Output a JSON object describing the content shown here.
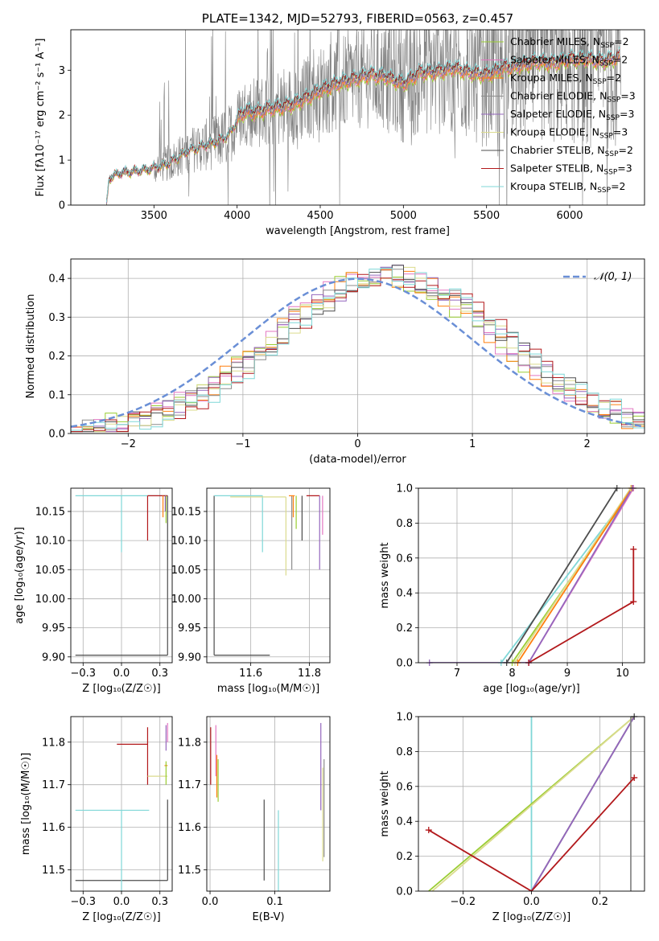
{
  "colors": {
    "Chabrier MILES": "#9acd32",
    "Salpeter MILES": "#e377c2",
    "Kroupa MILES": "#ff7f0e",
    "Chabrier ELODIE": "#8c8c8c",
    "Salpeter ELODIE": "#9467bd",
    "Kroupa ELODIE": "#dbdb8d",
    "Chabrier STELIB": "#4d4d4d",
    "Salpeter STELIB": "#b2181b",
    "Kroupa STELIB": "#7fd7d7",
    "observed": "#808080",
    "normal": "#6a8fd6",
    "grid": "#b0b0b0"
  },
  "chart_data": [
    {
      "id": "spectrum",
      "type": "line",
      "title": "PLATE=1342, MJD=52793, FIBERID=0563, z=0.457",
      "xlabel": "wavelength [Angstrom, rest frame]",
      "ylabel": "Flux [fλ10⁻¹⁷ erg cm⁻² s⁻¹ A⁻¹]",
      "xlim": [
        3000,
        6450
      ],
      "ylim": [
        0,
        3.9
      ],
      "xticks": [
        3500,
        4000,
        4500,
        5000,
        5500,
        6000
      ],
      "yticks": [
        0,
        1,
        2,
        3
      ],
      "grid": false,
      "legend_position": "upper right",
      "legend": [
        {
          "series": "Chabrier MILES",
          "label": "Chabrier MILES, N",
          "sub": "SSP",
          "tail": "=2"
        },
        {
          "series": "Salpeter MILES",
          "label": "Salpeter MILES, N",
          "sub": "SSP",
          "tail": "=2"
        },
        {
          "series": "Kroupa MILES",
          "label": "Kroupa MILES, N",
          "sub": "SSP",
          "tail": "=2"
        },
        {
          "series": "Chabrier ELODIE",
          "label": "Chabrier ELODIE, N",
          "sub": "SSP",
          "tail": "=3"
        },
        {
          "series": "Salpeter ELODIE",
          "label": "Salpeter ELODIE, N",
          "sub": "SSP",
          "tail": "=3"
        },
        {
          "series": "Kroupa ELODIE",
          "label": "Kroupa ELODIE, N",
          "sub": "SSP",
          "tail": "=3"
        },
        {
          "series": "Chabrier STELIB",
          "label": "Chabrier STELIB, N",
          "sub": "SSP",
          "tail": "=2"
        },
        {
          "series": "Salpeter STELIB",
          "label": "Salpeter STELIB, N",
          "sub": "SSP",
          "tail": "=3"
        },
        {
          "series": "Kroupa STELIB",
          "label": "Kroupa STELIB, N",
          "sub": "SSP",
          "tail": "=2"
        }
      ],
      "model_continuum": {
        "x": [
          3215,
          3230,
          3300,
          3400,
          3500,
          3600,
          3700,
          3800,
          3900,
          3950,
          4000,
          4050,
          4100,
          4200,
          4300,
          4400,
          4500,
          4600,
          4700,
          4800,
          4900,
          5000,
          5100,
          5200,
          5300,
          5400,
          5500,
          5600,
          5700,
          5800,
          5900,
          6000,
          6100,
          6200,
          6300
        ],
        "y": [
          0.0,
          0.6,
          0.72,
          0.76,
          0.82,
          0.95,
          1.2,
          1.32,
          1.45,
          1.55,
          1.9,
          2.1,
          2.05,
          2.15,
          2.2,
          2.35,
          2.55,
          2.7,
          2.8,
          2.9,
          2.85,
          2.7,
          2.95,
          2.95,
          3.05,
          2.95,
          2.9,
          3.05,
          3.1,
          3.2,
          3.15,
          3.25,
          3.25,
          3.2,
          3.3
        ]
      }
    },
    {
      "id": "residuals",
      "type": "line",
      "xlabel": "(data-model)/error",
      "ylabel": "Normed distribution",
      "xlim": [
        -2.5,
        2.5
      ],
      "ylim": [
        0,
        0.45
      ],
      "xticks": [
        -2,
        -1,
        0,
        1,
        2
      ],
      "yticks": [
        0.0,
        0.1,
        0.2,
        0.3,
        0.4
      ],
      "grid": true,
      "legend_position": "upper right",
      "legend_label": "𝒩(0, 1)",
      "reference": "standard normal",
      "hist_bin_width": 0.1,
      "hist_mean": 0.28,
      "hist_sd": 0.98
    },
    {
      "id": "age-vs-Z",
      "type": "scatter",
      "xlabel": "Z [log₁₀(Z/Z☉)]",
      "ylabel": "age  [log₁₀(age/yr)]",
      "xlim": [
        -0.33,
        0.33
      ],
      "ylim": [
        9.89,
        10.19
      ],
      "xticks": [
        -0.25,
        0.0,
        0.25
      ],
      "yticks": [
        9.9,
        9.95,
        10.0,
        10.05,
        10.1,
        10.15
      ],
      "grid": true,
      "segments": [
        {
          "series": "Chabrier STELIB",
          "x": [
            -0.3,
            0.3
          ],
          "y": [
            9.903,
            9.903
          ]
        },
        {
          "series": "Chabrier STELIB",
          "x": [
            0.3,
            0.3
          ],
          "y": [
            9.903,
            10.177
          ]
        },
        {
          "series": "Kroupa STELIB",
          "x": [
            -0.3,
            0.3
          ],
          "y": [
            10.177,
            10.177
          ]
        },
        {
          "series": "Kroupa STELIB",
          "x": [
            0.0,
            0.0
          ],
          "y": [
            10.08,
            10.177
          ]
        },
        {
          "series": "Salpeter STELIB",
          "x": [
            0.17,
            0.17
          ],
          "y": [
            10.1,
            10.177
          ]
        },
        {
          "series": "Salpeter STELIB",
          "x": [
            0.17,
            0.3
          ],
          "y": [
            10.177,
            10.177
          ]
        },
        {
          "series": "Kroupa MILES",
          "x": [
            0.27,
            0.27
          ],
          "y": [
            10.14,
            10.177
          ]
        },
        {
          "series": "Chabrier MILES",
          "x": [
            0.29,
            0.29
          ],
          "y": [
            10.13,
            10.177
          ]
        },
        {
          "series": "Salpeter ELODIE",
          "x": [
            0.285,
            0.285
          ],
          "y": [
            10.15,
            10.177
          ]
        }
      ]
    },
    {
      "id": "age-vs-mass",
      "type": "scatter",
      "xlabel": "mass [log₁₀(M/M☉)]",
      "ylabel": "",
      "xlim": [
        11.45,
        11.87
      ],
      "ylim": [
        9.89,
        10.19
      ],
      "xticks": [
        11.6,
        11.8
      ],
      "yticks": [
        9.9,
        9.95,
        10.0,
        10.05,
        10.1,
        10.15
      ],
      "grid": true,
      "segments": [
        {
          "series": "Chabrier STELIB",
          "x": [
            11.475,
            11.475
          ],
          "y": [
            9.903,
            10.177
          ]
        },
        {
          "series": "Chabrier STELIB",
          "x": [
            11.475,
            11.665
          ],
          "y": [
            9.903,
            9.903
          ]
        },
        {
          "series": "Kroupa STELIB",
          "x": [
            11.475,
            11.64
          ],
          "y": [
            10.177,
            10.177
          ]
        },
        {
          "series": "Kroupa STELIB",
          "x": [
            11.64,
            11.64
          ],
          "y": [
            10.08,
            10.177
          ]
        },
        {
          "series": "Kroupa ELODIE",
          "x": [
            11.53,
            11.72
          ],
          "y": [
            10.175,
            10.175
          ]
        },
        {
          "series": "Kroupa ELODIE",
          "x": [
            11.72,
            11.72
          ],
          "y": [
            10.04,
            10.175
          ]
        },
        {
          "series": "Chabrier ELODIE",
          "x": [
            11.74,
            11.74
          ],
          "y": [
            10.05,
            10.177
          ]
        },
        {
          "series": "Chabrier MILES",
          "x": [
            11.755,
            11.755
          ],
          "y": [
            10.12,
            10.177
          ]
        },
        {
          "series": "Kroupa MILES",
          "x": [
            11.73,
            11.75
          ],
          "y": [
            10.177,
            10.177
          ]
        },
        {
          "series": "Kroupa MILES",
          "x": [
            11.745,
            11.745
          ],
          "y": [
            10.14,
            10.177
          ]
        },
        {
          "series": "Salpeter STELIB",
          "x": [
            11.79,
            11.835
          ],
          "y": [
            10.177,
            10.177
          ]
        },
        {
          "series": "Salpeter ELODIE",
          "x": [
            11.835,
            11.835
          ],
          "y": [
            10.05,
            10.177
          ]
        },
        {
          "series": "Salpeter MILES",
          "x": [
            11.845,
            11.845
          ],
          "y": [
            10.11,
            10.177
          ]
        },
        {
          "series": "Chabrier STELIB",
          "x": [
            11.775,
            11.775
          ],
          "y": [
            10.1,
            10.177
          ]
        }
      ]
    },
    {
      "id": "mass-weight-vs-age",
      "type": "line",
      "xlabel": "age  [log₁₀(age/yr)]",
      "ylabel": "mass weight",
      "xlim": [
        6.3,
        10.4
      ],
      "ylim": [
        0,
        1
      ],
      "xticks": [
        7,
        8,
        9,
        10
      ],
      "yticks": [
        0.0,
        0.2,
        0.4,
        0.6,
        0.8,
        1.0
      ],
      "grid": true,
      "lines": [
        {
          "series": "Kroupa STELIB",
          "x": [
            7.8,
            10.2
          ],
          "y": [
            0.0,
            1.0
          ]
        },
        {
          "series": "Chabrier STELIB",
          "x": [
            7.9,
            9.9
          ],
          "y": [
            0.0,
            1.0
          ]
        },
        {
          "series": "Chabrier MILES",
          "x": [
            8.0,
            10.2
          ],
          "y": [
            0.0,
            1.0
          ]
        },
        {
          "series": "Kroupa ELODIE",
          "x": [
            8.05,
            10.15
          ],
          "y": [
            0.0,
            1.0
          ]
        },
        {
          "series": "Kroupa MILES",
          "x": [
            8.1,
            10.17
          ],
          "y": [
            0.0,
            1.0
          ]
        },
        {
          "series": "Salpeter MILES",
          "x": [
            8.3,
            10.2
          ],
          "y": [
            0.0,
            1.0
          ]
        },
        {
          "series": "Salpeter ELODIE",
          "x": [
            6.5,
            8.3,
            10.18
          ],
          "y": [
            0.0,
            0.0,
            1.0
          ]
        },
        {
          "series": "Salpeter STELIB",
          "x": [
            8.3,
            10.2,
            10.2
          ],
          "y": [
            0.0,
            0.35,
            0.65
          ]
        }
      ]
    },
    {
      "id": "mass-vs-Z",
      "type": "scatter",
      "xlabel": "Z [log₁₀(Z/Z☉)]",
      "ylabel": "mass [log₁₀(M/M☉)]",
      "xlim": [
        -0.33,
        0.33
      ],
      "ylim": [
        11.45,
        11.86
      ],
      "xticks": [
        -0.25,
        0.0,
        0.25
      ],
      "yticks": [
        11.5,
        11.6,
        11.7,
        11.8
      ],
      "grid": true,
      "segments": [
        {
          "series": "Chabrier STELIB",
          "x": [
            -0.3,
            0.3
          ],
          "y": [
            11.475,
            11.475
          ]
        },
        {
          "series": "Chabrier STELIB",
          "x": [
            0.3,
            0.3
          ],
          "y": [
            11.475,
            11.665
          ]
        },
        {
          "series": "Kroupa STELIB",
          "x": [
            -0.3,
            0.18
          ],
          "y": [
            11.64,
            11.64
          ]
        },
        {
          "series": "Kroupa STELIB",
          "x": [
            0.0,
            0.0
          ],
          "y": [
            11.45,
            11.64
          ]
        },
        {
          "series": "Salpeter STELIB",
          "x": [
            -0.03,
            0.17
          ],
          "y": [
            11.795,
            11.795
          ]
        },
        {
          "series": "Salpeter STELIB",
          "x": [
            0.17,
            0.17
          ],
          "y": [
            11.7,
            11.835
          ]
        },
        {
          "series": "Kroupa ELODIE",
          "x": [
            0.17,
            0.3
          ],
          "y": [
            11.72,
            11.72
          ]
        },
        {
          "series": "Kroupa MILES",
          "x": [
            0.28,
            0.3
          ],
          "y": [
            11.745,
            11.745
          ]
        },
        {
          "series": "Salpeter ELODIE",
          "x": [
            0.29,
            0.29
          ],
          "y": [
            11.78,
            11.84
          ]
        },
        {
          "series": "Salpeter MILES",
          "x": [
            0.3,
            0.3
          ],
          "y": [
            11.8,
            11.845
          ]
        },
        {
          "series": "Chabrier MILES",
          "x": [
            0.29,
            0.29
          ],
          "y": [
            11.7,
            11.755
          ]
        }
      ]
    },
    {
      "id": "mass-vs-EBV",
      "type": "scatter",
      "xlabel": "E(B-V)",
      "ylabel": "",
      "xlim": [
        -0.005,
        0.185
      ],
      "ylim": [
        11.45,
        11.86
      ],
      "xticks": [
        0.0,
        0.1
      ],
      "yticks": [
        11.5,
        11.6,
        11.7,
        11.8
      ],
      "grid": true,
      "segments": [
        {
          "series": "Salpeter STELIB",
          "x": [
            0.001,
            0.001
          ],
          "y": [
            11.7,
            11.835
          ]
        },
        {
          "series": "Salpeter MILES",
          "x": [
            0.009,
            0.009
          ],
          "y": [
            11.72,
            11.84
          ]
        },
        {
          "series": "Kroupa MILES",
          "x": [
            0.0105,
            0.0105
          ],
          "y": [
            11.67,
            11.77
          ]
        },
        {
          "series": "Chabrier MILES",
          "x": [
            0.0125,
            0.0125
          ],
          "y": [
            11.66,
            11.76
          ]
        },
        {
          "series": "Chabrier STELIB",
          "x": [
            0.0835,
            0.0835
          ],
          "y": [
            11.475,
            11.665
          ]
        },
        {
          "series": "Kroupa STELIB",
          "x": [
            0.1055,
            0.1055
          ],
          "y": [
            11.45,
            11.64
          ]
        },
        {
          "series": "Salpeter ELODIE",
          "x": [
            0.171,
            0.171
          ],
          "y": [
            11.64,
            11.845
          ]
        },
        {
          "series": "Kroupa ELODIE",
          "x": [
            0.174,
            0.174
          ],
          "y": [
            11.52,
            11.74
          ]
        },
        {
          "series": "Chabrier ELODIE",
          "x": [
            0.176,
            0.176
          ],
          "y": [
            11.53,
            11.76
          ]
        }
      ]
    },
    {
      "id": "mass-weight-vs-Z",
      "type": "line",
      "xlabel": "Z [log₁₀(Z/Z☉)]",
      "ylabel": "mass weight",
      "xlim": [
        -0.33,
        0.33
      ],
      "ylim": [
        0,
        1
      ],
      "xticks": [
        -0.2,
        0.0,
        0.2
      ],
      "yticks": [
        0.0,
        0.2,
        0.4,
        0.6,
        0.8,
        1.0
      ],
      "grid": true,
      "lines": [
        {
          "series": "Kroupa STELIB",
          "x": [
            0.0,
            0.0
          ],
          "y": [
            0.0,
            1.0
          ]
        },
        {
          "series": "Chabrier MILES",
          "x": [
            -0.3,
            0.3
          ],
          "y": [
            0.0,
            1.0
          ]
        },
        {
          "series": "Kroupa ELODIE",
          "x": [
            -0.29,
            0.3
          ],
          "y": [
            0.0,
            1.0
          ]
        },
        {
          "series": "Chabrier STELIB",
          "x": [
            0.0,
            0.3
          ],
          "y": [
            0.0,
            1.0
          ]
        },
        {
          "series": "Salpeter ELODIE",
          "x": [
            0.0,
            0.3
          ],
          "y": [
            0.0,
            1.0
          ]
        },
        {
          "series": "Chabrier ELODIE",
          "x": [
            0.29,
            0.29,
            0.3
          ],
          "y": [
            0.0,
            1.0,
            1.0
          ]
        },
        {
          "series": "Salpeter STELIB",
          "x": [
            -0.3,
            0.0,
            0.3
          ],
          "y": [
            0.35,
            0.0,
            0.65
          ]
        }
      ],
      "markers": [
        {
          "series": "Salpeter STELIB",
          "x": -0.3,
          "y": 0.35
        },
        {
          "series": "Salpeter STELIB",
          "x": 0.3,
          "y": 0.65
        },
        {
          "series": "Chabrier STELIB",
          "x": 0.3,
          "y": 1.0
        }
      ]
    }
  ]
}
